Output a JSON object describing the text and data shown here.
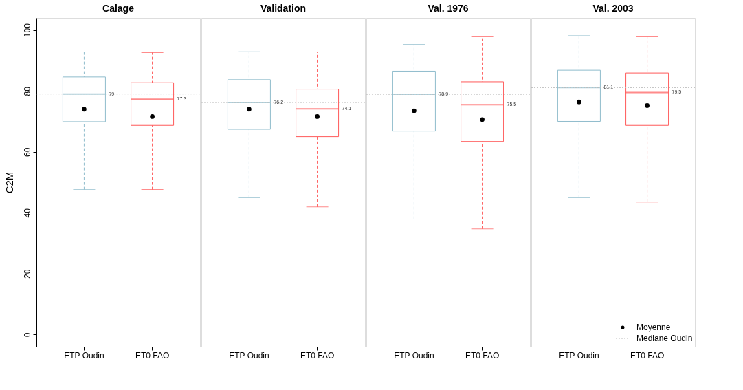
{
  "chart_data": [
    {
      "type": "box",
      "title": "Calage",
      "ylabel": "C2M",
      "categories": [
        "ETP Oudin",
        "ET0 FAO"
      ],
      "colors": [
        "#8fbccc",
        "#ff5a5a"
      ],
      "boxes": [
        {
          "low": 47.6,
          "q1": 69.9,
          "median": 79,
          "q3": 84.6,
          "high": 93.5
        },
        {
          "low": 47.6,
          "q1": 68.7,
          "median": 77.3,
          "q3": 82.7,
          "high": 92.6
        }
      ],
      "series": [
        {
          "type": "scatter",
          "color": "#000000",
          "x": [
            "ETP Oudin",
            "ET0 FAO"
          ],
          "values": [
            74.0,
            71.6
          ]
        }
      ],
      "ref_lines": [
        {
          "axis": "y",
          "value": 79,
          "color": "#bbbbbb",
          "line_style": "dotted"
        }
      ],
      "annotations": [
        "79",
        "77.3"
      ],
      "ylim": [
        -4,
        104
      ],
      "yticks": [
        0,
        20,
        40,
        60,
        80,
        100
      ]
    },
    {
      "type": "box",
      "title": "Validation",
      "categories": [
        "ETP Oudin",
        "ET0 FAO"
      ],
      "colors": [
        "#8fbccc",
        "#ff5a5a"
      ],
      "boxes": [
        {
          "low": 44.9,
          "q1": 67.4,
          "median": 76.2,
          "q3": 83.7,
          "high": 92.9
        },
        {
          "low": 41.9,
          "q1": 65.0,
          "median": 74.1,
          "q3": 80.6,
          "high": 92.8
        }
      ],
      "series": [
        {
          "type": "scatter",
          "color": "#000000",
          "x": [
            "ETP Oudin",
            "ET0 FAO"
          ],
          "values": [
            74.0,
            71.6
          ]
        }
      ],
      "ref_lines": [
        {
          "axis": "y",
          "value": 76.2,
          "color": "#bbbbbb",
          "line_style": "dotted"
        }
      ],
      "annotations": [
        "76.2",
        "74.1"
      ],
      "ylim": [
        -4,
        104
      ],
      "yticks": [
        0,
        20,
        40,
        60,
        80,
        100
      ],
      "tick_labels": "x"
    },
    {
      "type": "box",
      "title": "Val. 1976",
      "categories": [
        "ETP Oudin",
        "ET0 FAO"
      ],
      "colors": [
        "#8fbccc",
        "#ff5a5a"
      ],
      "boxes": [
        {
          "low": 37.9,
          "q1": 66.8,
          "median": 78.9,
          "q3": 86.5,
          "high": 95.3
        },
        {
          "low": 34.7,
          "q1": 63.4,
          "median": 75.5,
          "q3": 83.0,
          "high": 97.8
        }
      ],
      "series": [
        {
          "type": "scatter",
          "color": "#000000",
          "x": [
            "ETP Oudin",
            "ET0 FAO"
          ],
          "values": [
            73.5,
            70.6
          ]
        }
      ],
      "ref_lines": [
        {
          "axis": "y",
          "value": 78.9,
          "color": "#bbbbbb",
          "line_style": "dotted"
        }
      ],
      "annotations": [
        "78.9",
        "75.5"
      ],
      "ylim": [
        -4,
        104
      ],
      "yticks": [
        0,
        20,
        40,
        60,
        80,
        100
      ],
      "tick_labels": "x"
    },
    {
      "type": "box",
      "title": "Val. 2003",
      "categories": [
        "ETP Oudin",
        "ET0 FAO"
      ],
      "colors": [
        "#8fbccc",
        "#ff5a5a"
      ],
      "boxes": [
        {
          "low": 44.9,
          "q1": 70.0,
          "median": 81.1,
          "q3": 86.8,
          "high": 98.2
        },
        {
          "low": 43.5,
          "q1": 68.7,
          "median": 79.5,
          "q3": 85.9,
          "high": 97.8
        }
      ],
      "series": [
        {
          "type": "scatter",
          "name": "Moyenne",
          "color": "#000000",
          "x": [
            "ETP Oudin",
            "ET0 FAO"
          ],
          "values": [
            76.4,
            75.2
          ]
        }
      ],
      "ref_lines": [
        {
          "axis": "y",
          "value": 81.1,
          "label": "Mediane Oudin",
          "color": "#bbbbbb",
          "line_style": "dotted"
        }
      ],
      "annotations": [
        "81.1",
        "79.5"
      ],
      "legend": "bottom right",
      "ylim": [
        -4,
        104
      ],
      "yticks": [
        0,
        20,
        40,
        60,
        80,
        100
      ],
      "tick_labels": "x"
    }
  ]
}
